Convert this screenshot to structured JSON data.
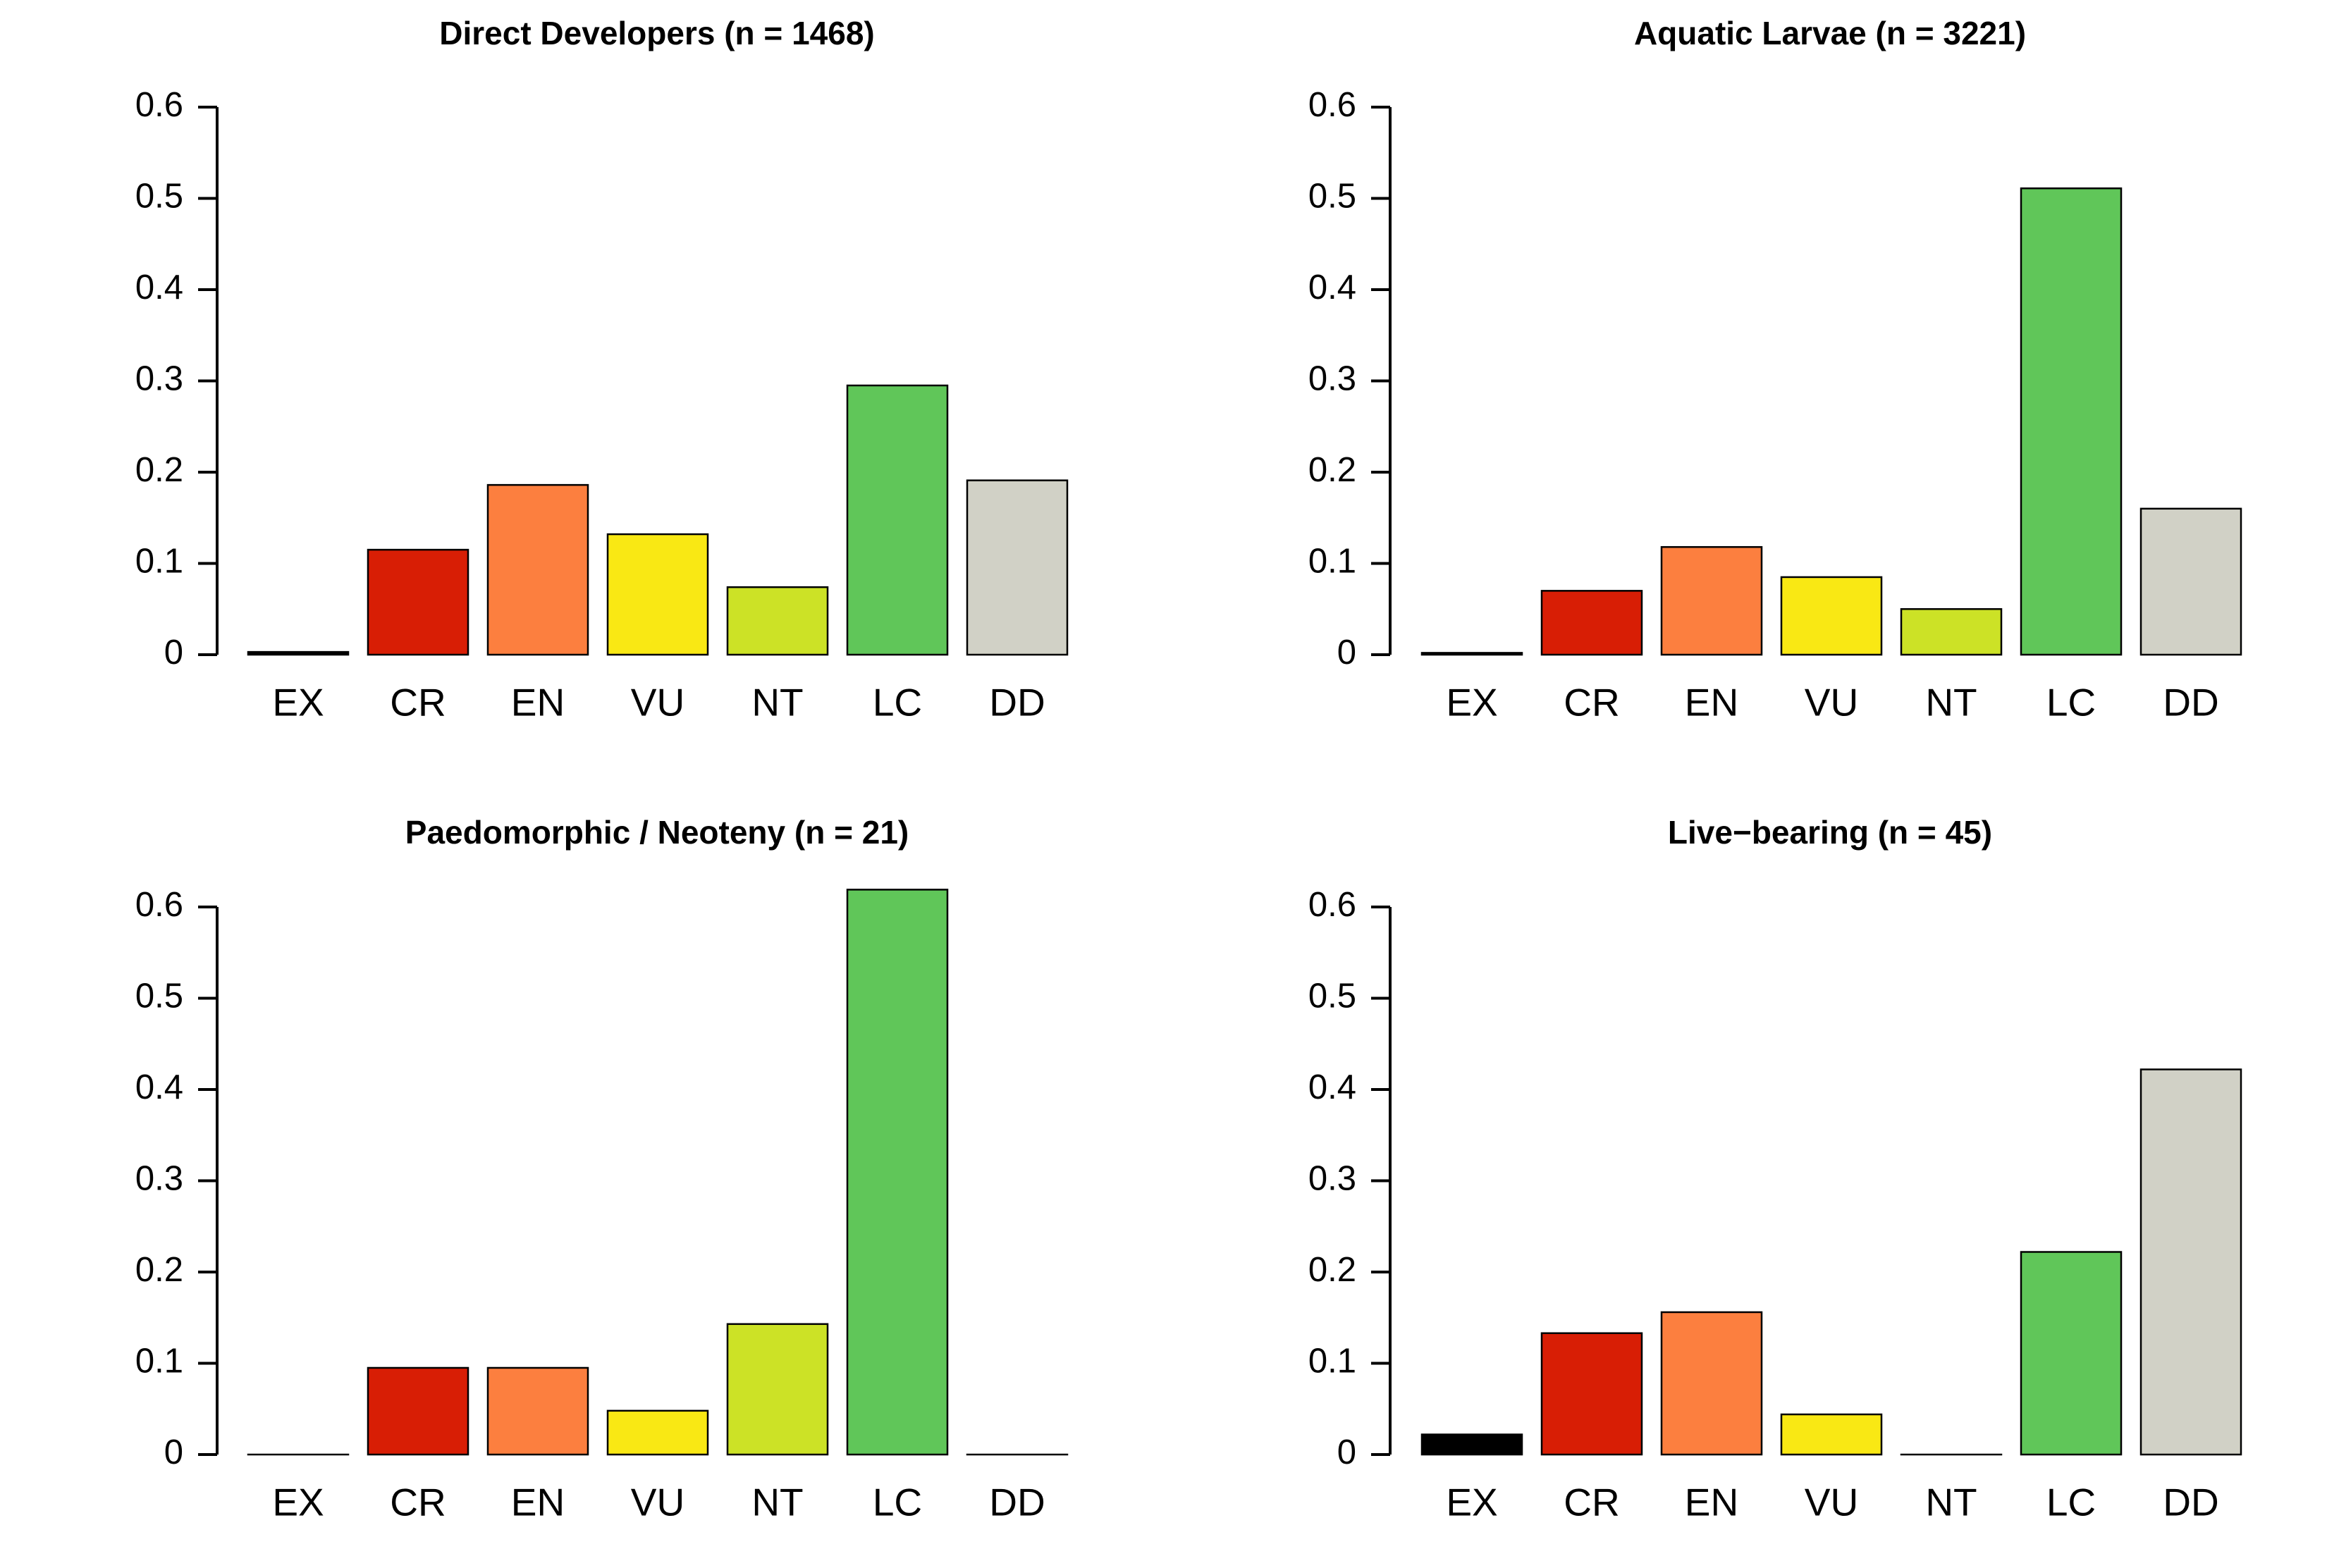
{
  "chart_data": [
    {
      "type": "bar",
      "title": "Direct Developers (n = 1468)",
      "categories": [
        "EX",
        "CR",
        "EN",
        "VU",
        "NT",
        "LC",
        "DD"
      ],
      "values": [
        0.003,
        0.115,
        0.186,
        0.132,
        0.074,
        0.295,
        0.191
      ],
      "yticks": [
        "0",
        "0.1",
        "0.2",
        "0.3",
        "0.4",
        "0.5",
        "0.6"
      ],
      "ylim": [
        0,
        0.6
      ],
      "xlabel": "",
      "ylabel": ""
    },
    {
      "type": "bar",
      "title": "Aquatic Larvae (n = 3221)",
      "categories": [
        "EX",
        "CR",
        "EN",
        "VU",
        "NT",
        "LC",
        "DD"
      ],
      "values": [
        0.002,
        0.07,
        0.118,
        0.085,
        0.05,
        0.511,
        0.16
      ],
      "yticks": [
        "0",
        "0.1",
        "0.2",
        "0.3",
        "0.4",
        "0.5",
        "0.6"
      ],
      "ylim": [
        0,
        0.6
      ],
      "xlabel": "",
      "ylabel": ""
    },
    {
      "type": "bar",
      "title": "Paedomorphic / Neoteny (n = 21)",
      "categories": [
        "EX",
        "CR",
        "EN",
        "VU",
        "NT",
        "LC",
        "DD"
      ],
      "values": [
        0,
        0.095,
        0.095,
        0.048,
        0.143,
        0.619,
        0
      ],
      "yticks": [
        "0",
        "0.1",
        "0.2",
        "0.3",
        "0.4",
        "0.5",
        "0.6"
      ],
      "ylim": [
        0,
        0.6
      ],
      "xlabel": "",
      "ylabel": ""
    },
    {
      "type": "bar",
      "title": "Live−bearing (n = 45)",
      "categories": [
        "EX",
        "CR",
        "EN",
        "VU",
        "NT",
        "LC",
        "DD"
      ],
      "values": [
        0.022,
        0.133,
        0.156,
        0.044,
        0,
        0.222,
        0.422
      ],
      "yticks": [
        "0",
        "0.1",
        "0.2",
        "0.3",
        "0.4",
        "0.5",
        "0.6"
      ],
      "ylim": [
        0,
        0.6
      ],
      "xlabel": "",
      "ylabel": ""
    }
  ],
  "colors": {
    "EX": "#000000",
    "CR": "#d81e05",
    "EN": "#fc7f3f",
    "VU": "#f9e814",
    "NT": "#cce226",
    "LC": "#60c659",
    "DD": "#d1d1c6"
  }
}
